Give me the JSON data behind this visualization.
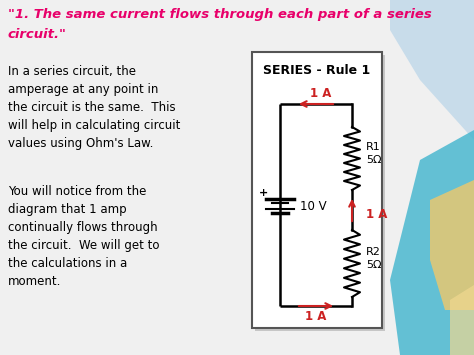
{
  "title_line1": "\"1. The same current flows through each part of a series",
  "title_line2": "circuit.\"",
  "body_text1": "In a series circuit, the\namperage at any point in\nthe circuit is the same.  This\nwill help in calculating circuit\nvalues using Ohm's Law.",
  "body_text2": "You will notice from the\ndiagram that 1 amp\ncontinually flows through\nthe circuit.  We will get to\nthe calculations in a\nmoment.",
  "diagram_title": "SERIES - Rule 1",
  "label_1A_top": "1 A",
  "label_1A_right": "1 A",
  "label_1A_bottom": "1 A",
  "label_battery": "10 V",
  "label_R1": "R1\n5Ω",
  "label_R2": "R2\n5Ω",
  "bg_color": "#f0f0f0",
  "title_color": "#e8006a",
  "body_color": "#000000",
  "wire_color": "#000000",
  "current_color": "#cc2222",
  "resistor_color": "#000000",
  "diagram_bg": "#ffffff",
  "diagram_border": "#555555",
  "swirl_blue_light": "#b8d4e8",
  "swirl_teal": "#4ab8d0",
  "swirl_yellow": "#e8c870",
  "swirl_yellow2": "#f0d890"
}
